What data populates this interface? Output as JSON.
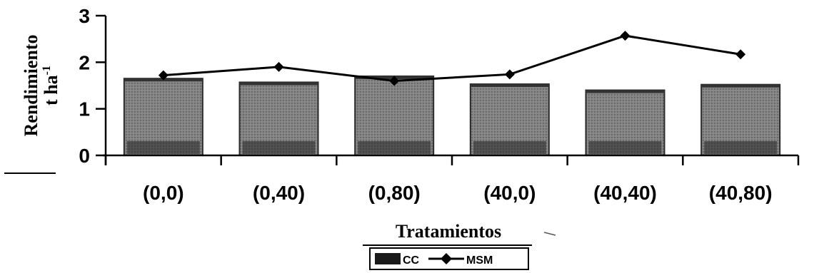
{
  "chart_data": {
    "type": "bar",
    "categories": [
      "(0,0)",
      "(0,40)",
      "(0,80)",
      "(40,0)",
      "(40,40)",
      "(40,80)"
    ],
    "series": [
      {
        "name": "CC",
        "type": "bar",
        "values": [
          1.65,
          1.57,
          1.7,
          1.53,
          1.4,
          1.52
        ]
      },
      {
        "name": "MSM",
        "type": "line",
        "values": [
          1.72,
          1.9,
          1.6,
          1.74,
          2.57,
          2.17
        ]
      }
    ],
    "ylabel_line1": "Rendimiento",
    "ylabel_line2": "t ha",
    "ylabel_superscript": "-1",
    "xlabel": "Tratamientos",
    "ylim": [
      0,
      3
    ],
    "yticks": [
      0,
      1,
      2,
      3
    ],
    "grid": false,
    "legend_placement": "bottom-center",
    "colors": {
      "bar": "#7a7a7a",
      "bar_dark": "#2b2b2b",
      "line": "#000000"
    }
  }
}
